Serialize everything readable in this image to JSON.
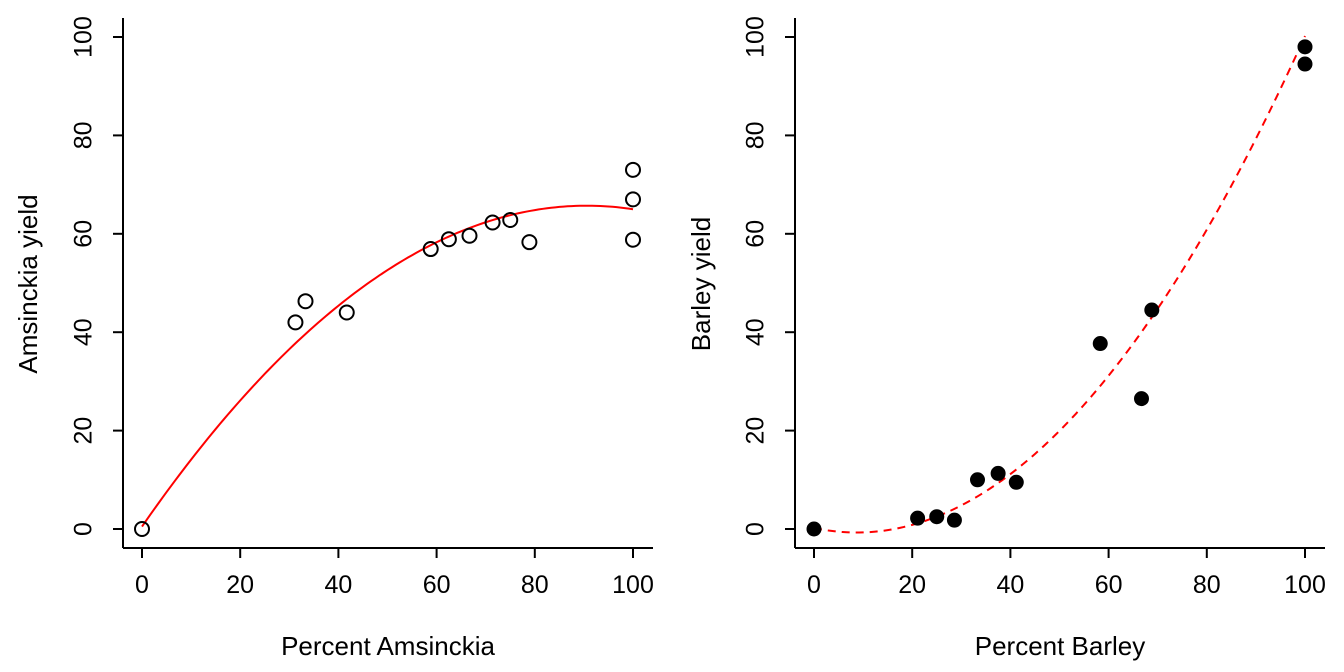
{
  "colors": {
    "axis": "#000000",
    "fit_line": "#ff0000",
    "point_open": "#000000",
    "point_filled": "#000000"
  },
  "chart_data": [
    {
      "type": "scatter",
      "xlabel": "Percent Amsinckia",
      "ylabel": "Amsinckia yield",
      "xlim": [
        0,
        100
      ],
      "ylim": [
        0,
        100
      ],
      "xticks": [
        0,
        20,
        40,
        60,
        80,
        100
      ],
      "yticks": [
        0,
        20,
        40,
        60,
        80,
        100
      ],
      "marker": "open-circle",
      "points": [
        {
          "x": 0,
          "y": 0
        },
        {
          "x": 31.25,
          "y": 42
        },
        {
          "x": 33.3,
          "y": 46.3
        },
        {
          "x": 41.7,
          "y": 44
        },
        {
          "x": 58.8,
          "y": 56.9
        },
        {
          "x": 62.5,
          "y": 58.9
        },
        {
          "x": 66.7,
          "y": 59.6
        },
        {
          "x": 71.4,
          "y": 62.3
        },
        {
          "x": 75,
          "y": 62.8
        },
        {
          "x": 78.9,
          "y": 58.3
        },
        {
          "x": 100,
          "y": 58.8
        },
        {
          "x": 100,
          "y": 67
        },
        {
          "x": 100,
          "y": 73
        }
      ],
      "fit": {
        "style": "solid",
        "coef": [
          0.5,
          1.44,
          -0.00795
        ],
        "x_range": [
          0,
          100
        ]
      }
    },
    {
      "type": "scatter",
      "xlabel": "Percent Barley",
      "ylabel": "Barley yield",
      "xlim": [
        0,
        100
      ],
      "ylim": [
        0,
        100
      ],
      "xticks": [
        0,
        20,
        40,
        60,
        80,
        100
      ],
      "yticks": [
        0,
        20,
        40,
        60,
        80,
        100
      ],
      "marker": "filled-circle",
      "points": [
        {
          "x": 0,
          "y": 0
        },
        {
          "x": 21.1,
          "y": 2.2
        },
        {
          "x": 25,
          "y": 2.5
        },
        {
          "x": 28.6,
          "y": 1.8
        },
        {
          "x": 33.3,
          "y": 10
        },
        {
          "x": 37.5,
          "y": 11.3
        },
        {
          "x": 41.2,
          "y": 9.5
        },
        {
          "x": 58.3,
          "y": 37.7
        },
        {
          "x": 66.7,
          "y": 26.5
        },
        {
          "x": 68.8,
          "y": 44.5
        },
        {
          "x": 100,
          "y": 94.5
        },
        {
          "x": 100,
          "y": 98
        }
      ],
      "fit": {
        "style": "dashed",
        "coef": [
          0.2,
          -0.21,
          0.0121
        ],
        "x_range": [
          0,
          100
        ]
      }
    }
  ]
}
